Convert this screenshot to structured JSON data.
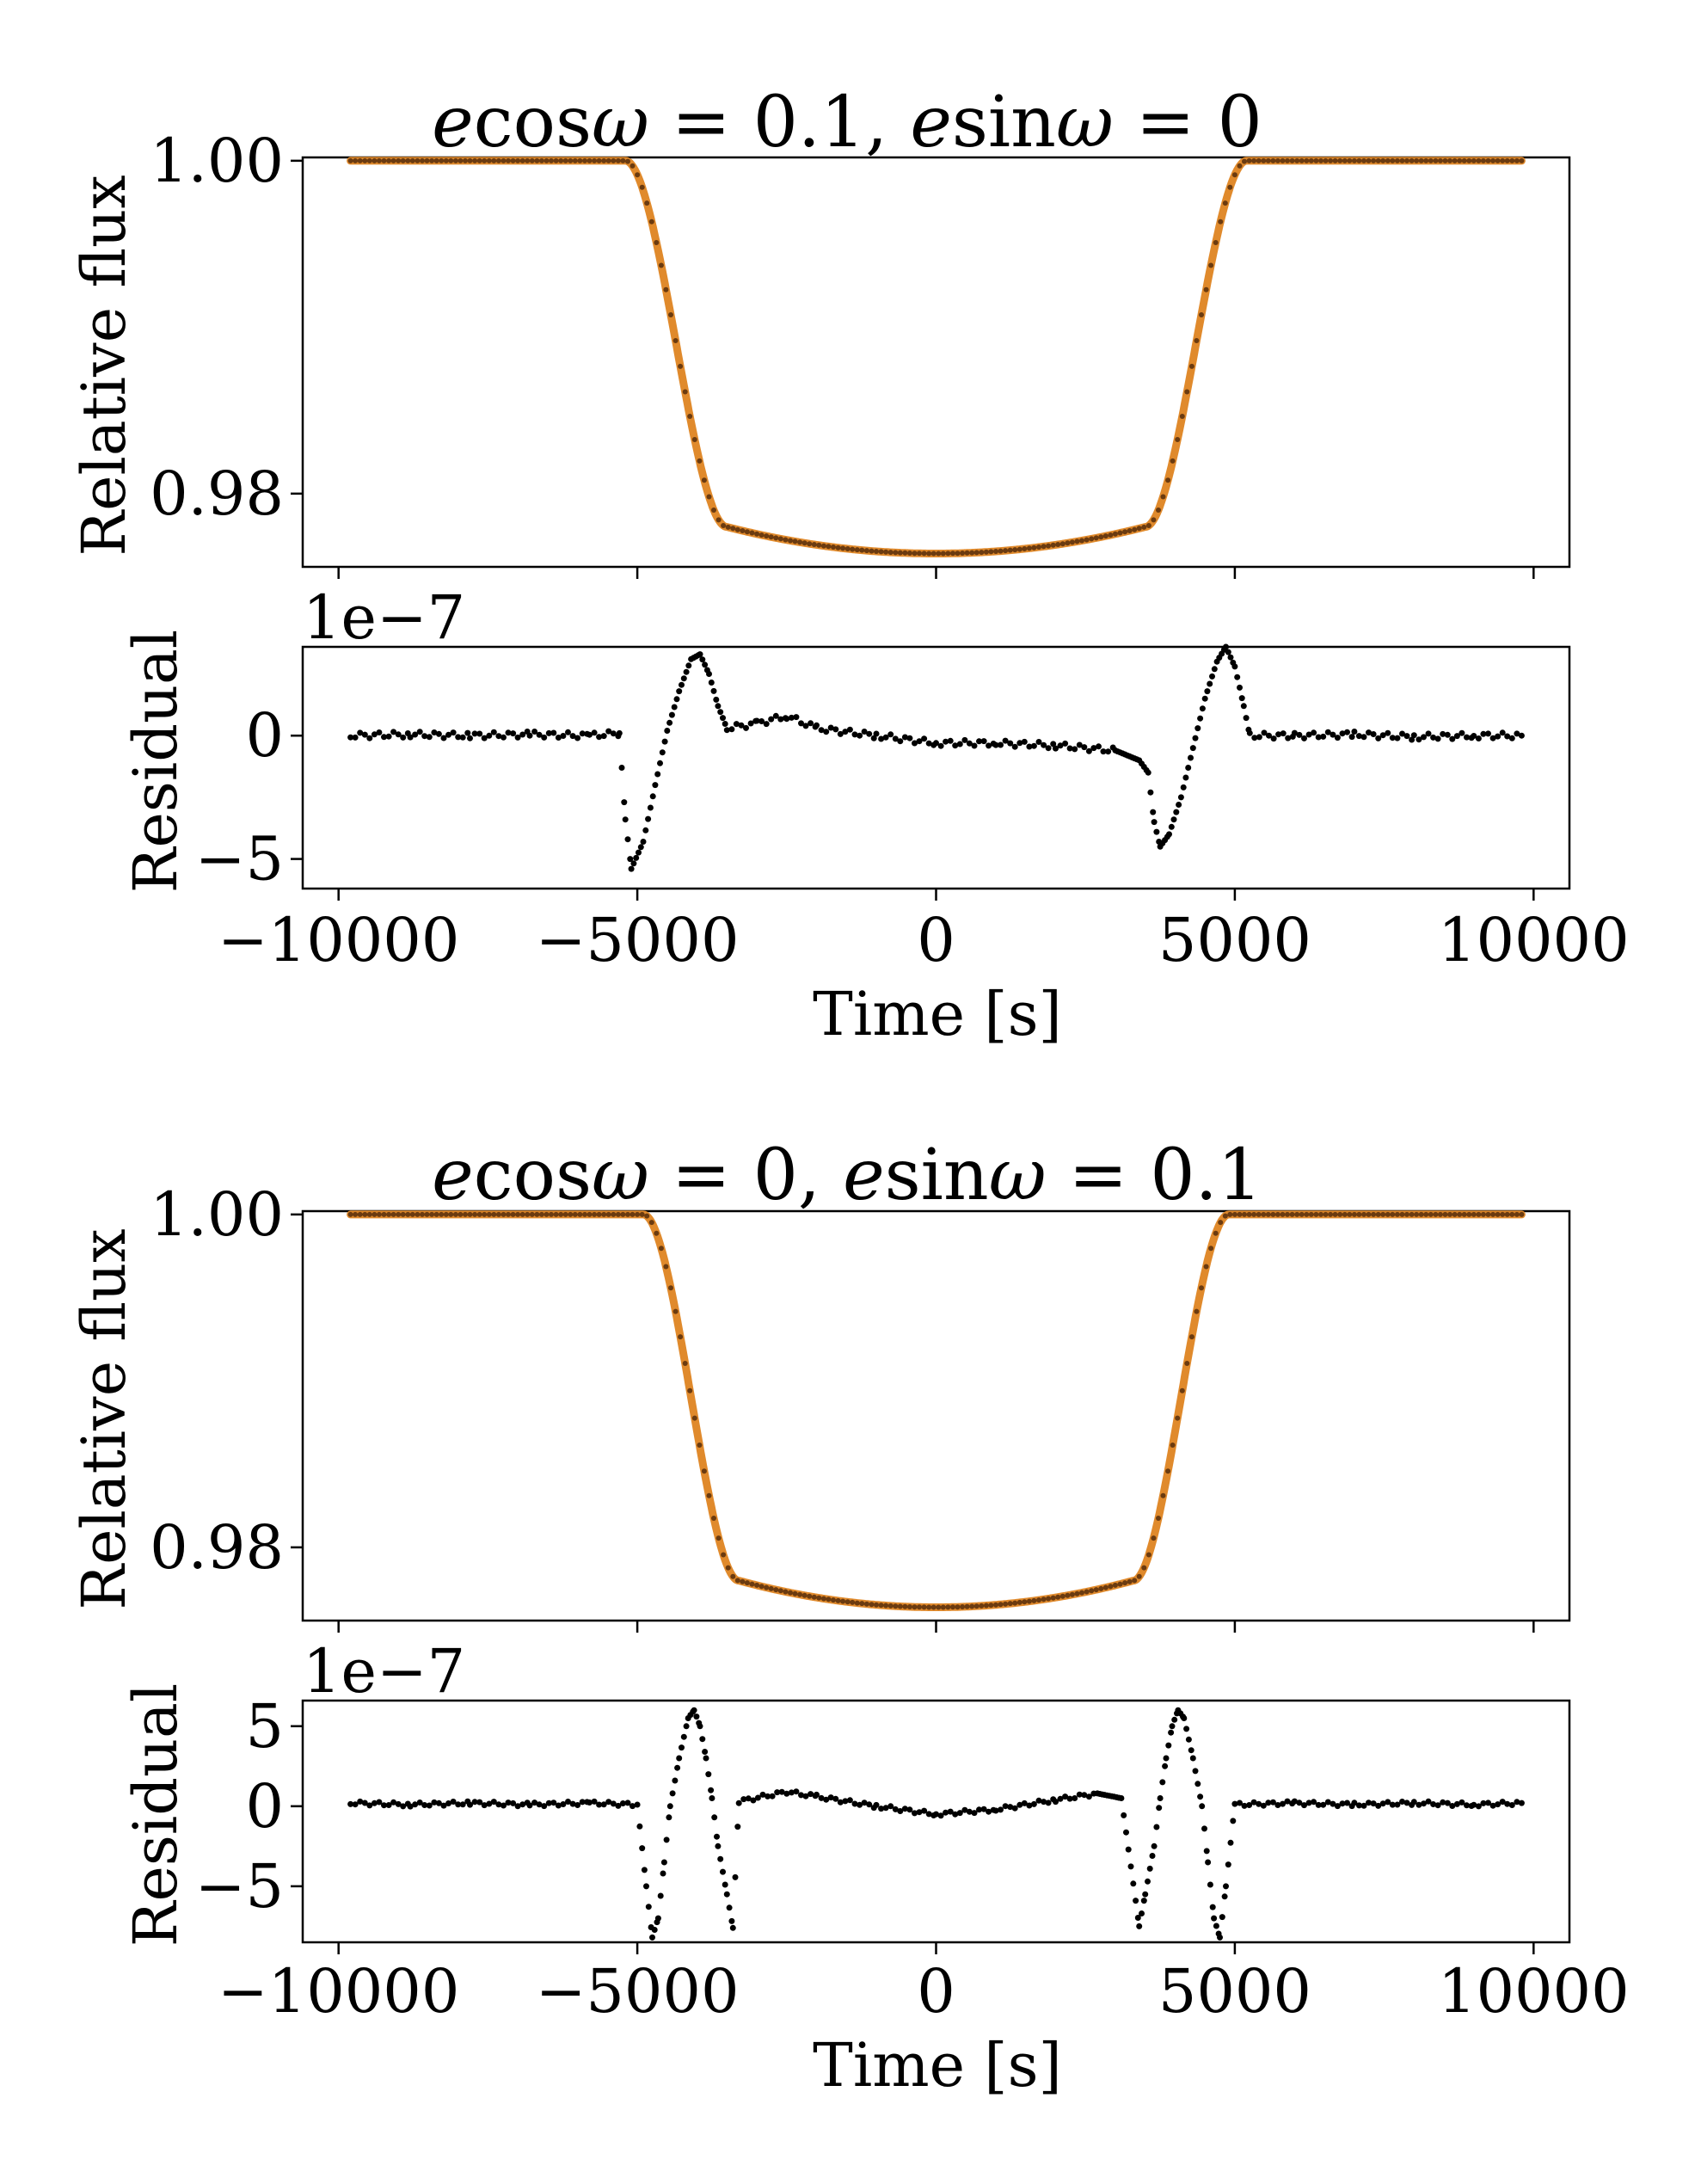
{
  "chart_data": [
    {
      "type": "scatter",
      "title": {
        "e": "e",
        "cos": "cos",
        "omega": "ω",
        "rest1": " = 0.1, ",
        "e2": "e",
        "sin": "sin",
        "omega2": "ω",
        "rest2": " = 0"
      },
      "flux_panel": {
        "ylabel": "Relative flux",
        "xlim": [
          -10600,
          10600
        ],
        "ylim": [
          0.9756,
          1.0002
        ],
        "yticks": [
          1.0,
          0.98
        ],
        "ytick_labels": [
          "1.00",
          "0.98"
        ],
        "xticks": [
          -10000,
          -5000,
          0,
          5000,
          10000
        ],
        "model_color": "#e08a2c",
        "data_color": "#6b3b10",
        "transit": {
          "t1": -5200,
          "t2": -3500,
          "t3": 3500,
          "t4": 5200,
          "depth_center": 0.9764,
          "depth_edge": 0.978
        }
      },
      "residual_panel": {
        "ylabel": "Residual",
        "offset_label": "1e−7",
        "xlim": [
          -10600,
          10600
        ],
        "ylim": [
          -6.2,
          3.6
        ],
        "yticks": [
          0,
          -5
        ],
        "ytick_labels": [
          "0",
          "−5"
        ],
        "xticks": [
          -10000,
          -5000,
          0,
          5000,
          10000
        ],
        "xtick_labels": [
          "−10000",
          "−5000",
          "0",
          "5000",
          "10000"
        ],
        "xlabel": "Time [s]",
        "points": [
          [
            -9800,
            0.0
          ],
          [
            -8800,
            0.05
          ],
          [
            -7800,
            0.0
          ],
          [
            -6800,
            0.05
          ],
          [
            -5800,
            0.0
          ],
          [
            -5300,
            0.1
          ],
          [
            -5200,
            -3.4
          ],
          [
            -5100,
            -5.4
          ],
          [
            -4900,
            -4.3
          ],
          [
            -4700,
            -2.0
          ],
          [
            -4500,
            0.2
          ],
          [
            -4300,
            1.8
          ],
          [
            -4100,
            3.1
          ],
          [
            -3950,
            3.3
          ],
          [
            -3800,
            2.5
          ],
          [
            -3650,
            1.2
          ],
          [
            -3500,
            0.3
          ],
          [
            -3000,
            0.5
          ],
          [
            -2500,
            0.8
          ],
          [
            -2000,
            0.3
          ],
          [
            -1000,
            0.0
          ],
          [
            0,
            -0.3
          ],
          [
            1000,
            -0.3
          ],
          [
            2000,
            -0.4
          ],
          [
            3000,
            -0.6
          ],
          [
            3400,
            -1.0
          ],
          [
            3550,
            -1.5
          ],
          [
            3650,
            -3.5
          ],
          [
            3750,
            -4.5
          ],
          [
            3900,
            -4.0
          ],
          [
            4100,
            -2.5
          ],
          [
            4300,
            -0.5
          ],
          [
            4500,
            1.5
          ],
          [
            4700,
            3.0
          ],
          [
            4850,
            3.6
          ],
          [
            5000,
            2.8
          ],
          [
            5150,
            1.2
          ],
          [
            5250,
            0.0
          ],
          [
            6000,
            0.0
          ],
          [
            7000,
            0.05
          ],
          [
            8000,
            -0.05
          ],
          [
            9000,
            0.0
          ],
          [
            9800,
            0.0
          ]
        ]
      }
    },
    {
      "type": "scatter",
      "title": {
        "e": "e",
        "cos": "cos",
        "omega": "ω",
        "rest1": " = 0, ",
        "e2": "e",
        "sin": "sin",
        "omega2": "ω",
        "rest2": " = 0.1"
      },
      "flux_panel": {
        "ylabel": "Relative flux",
        "xlim": [
          -10600,
          10600
        ],
        "ylim": [
          0.9756,
          1.0002
        ],
        "yticks": [
          1.0,
          0.98
        ],
        "ytick_labels": [
          "1.00",
          "0.98"
        ],
        "xticks": [
          -10000,
          -5000,
          0,
          5000,
          10000
        ],
        "model_color": "#e08a2c",
        "data_color": "#6b3b10",
        "transit": {
          "t1": -4900,
          "t2": -3300,
          "t3": 3300,
          "t4": 4900,
          "depth_center": 0.9764,
          "depth_edge": 0.978
        }
      },
      "residual_panel": {
        "ylabel": "Residual",
        "offset_label": "1e−7",
        "xlim": [
          -10600,
          10600
        ],
        "ylim": [
          -8.5,
          6.6
        ],
        "yticks": [
          5,
          0,
          -5
        ],
        "ytick_labels": [
          "5",
          "0",
          "−5"
        ],
        "xticks": [
          -10000,
          -5000,
          0,
          5000,
          10000
        ],
        "xtick_labels": [
          "−10000",
          "−5000",
          "0",
          "5000",
          "10000"
        ],
        "xlabel": "Time [s]",
        "points": [
          [
            -9800,
            0.2
          ],
          [
            -8800,
            0.1
          ],
          [
            -7800,
            0.2
          ],
          [
            -6800,
            0.1
          ],
          [
            -5800,
            0.2
          ],
          [
            -5000,
            0.1
          ],
          [
            -4850,
            -5.0
          ],
          [
            -4750,
            -8.2
          ],
          [
            -4650,
            -7.0
          ],
          [
            -4550,
            -3.5
          ],
          [
            -4450,
            0.0
          ],
          [
            -4300,
            3.0
          ],
          [
            -4150,
            5.5
          ],
          [
            -4050,
            6.0
          ],
          [
            -3950,
            5.0
          ],
          [
            -3850,
            3.0
          ],
          [
            -3750,
            0.5
          ],
          [
            -3650,
            -2.5
          ],
          [
            -3500,
            -5.5
          ],
          [
            -3400,
            -7.6
          ],
          [
            -3300,
            0.3
          ],
          [
            -2500,
            0.9
          ],
          [
            -2000,
            0.6
          ],
          [
            -1000,
            0.0
          ],
          [
            0,
            -0.5
          ],
          [
            1000,
            -0.2
          ],
          [
            2000,
            0.4
          ],
          [
            2700,
            0.8
          ],
          [
            3100,
            0.5
          ],
          [
            3400,
            -7.5
          ],
          [
            3500,
            -5.5
          ],
          [
            3650,
            -2.5
          ],
          [
            3750,
            0.5
          ],
          [
            3850,
            3.0
          ],
          [
            3950,
            5.0
          ],
          [
            4050,
            6.0
          ],
          [
            4150,
            5.5
          ],
          [
            4300,
            3.0
          ],
          [
            4450,
            0.0
          ],
          [
            4550,
            -3.5
          ],
          [
            4650,
            -7.0
          ],
          [
            4750,
            -8.2
          ],
          [
            4850,
            -5.0
          ],
          [
            5000,
            0.1
          ],
          [
            6000,
            0.2
          ],
          [
            7000,
            0.1
          ],
          [
            8000,
            0.2
          ],
          [
            9000,
            0.1
          ],
          [
            9800,
            0.2
          ]
        ]
      }
    }
  ]
}
